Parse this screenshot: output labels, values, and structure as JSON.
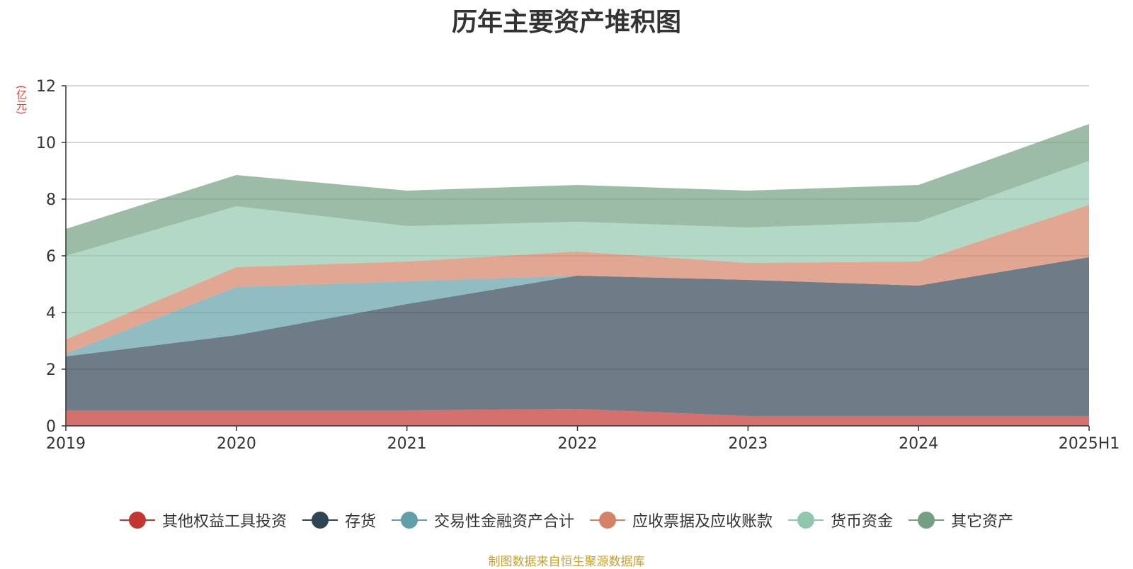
{
  "chart_data": {
    "type": "area",
    "stacked": true,
    "title": "历年主要资产堆积图",
    "ylabel": "(亿元)",
    "categories": [
      "2019",
      "2020",
      "2021",
      "2022",
      "2023",
      "2024",
      "2025H1"
    ],
    "ylim": [
      0,
      12
    ],
    "yticks": [
      0,
      2,
      4,
      6,
      8,
      10,
      12
    ],
    "grid": true,
    "legend_position": "bottom",
    "series": [
      {
        "name": "其他权益工具投资",
        "color": "#c23531",
        "values": [
          0.55,
          0.55,
          0.55,
          0.6,
          0.35,
          0.35,
          0.35
        ]
      },
      {
        "name": "存货",
        "color": "#2f4554",
        "values": [
          1.9,
          2.65,
          3.75,
          4.7,
          4.8,
          4.6,
          5.6
        ]
      },
      {
        "name": "交易性金融资产合计",
        "color": "#61a0a8",
        "values": [
          0.1,
          1.7,
          0.8,
          0.0,
          0.0,
          0.0,
          0.0
        ]
      },
      {
        "name": "应收票据及应收账款",
        "color": "#d48265",
        "values": [
          0.5,
          0.7,
          0.7,
          0.85,
          0.6,
          0.85,
          1.85
        ]
      },
      {
        "name": "货币资金",
        "color": "#91c7ae",
        "values": [
          2.95,
          2.15,
          1.25,
          1.05,
          1.25,
          1.4,
          1.55
        ]
      },
      {
        "name": "其它资产",
        "color": "#749f83",
        "values": [
          0.95,
          1.1,
          1.25,
          1.3,
          1.3,
          1.3,
          1.3
        ]
      }
    ]
  },
  "source_note": "制图数据来自恒生聚源数据库"
}
